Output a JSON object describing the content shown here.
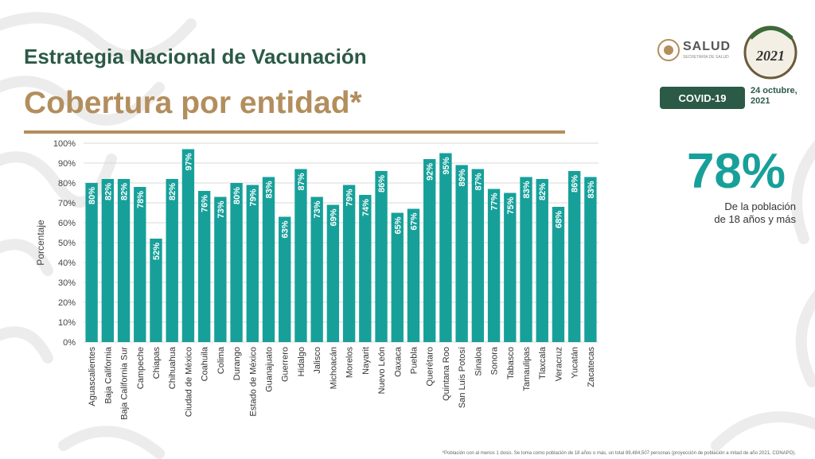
{
  "header": {
    "title": "Estrategia Nacional de Vacunación",
    "subtitle": "Cobertura por entidad*"
  },
  "logo": {
    "name": "SALUD",
    "sub": "SECRETARÍA DE SALUD",
    "emblem_year": "2021"
  },
  "badge": {
    "text": "COVID-19"
  },
  "date": {
    "line1": "24 octubre,",
    "line2": "2021"
  },
  "summary": {
    "percent": "78%",
    "line1": "De la población",
    "line2": "de 18 años y más"
  },
  "footnote": "*Población con al menos 1 dosis. Se toma como población de 18 años o más, un total 89,484,507 personas (proyección de población a mitad de año 2021, CONAPO).",
  "colors": {
    "bar": "#17a09a",
    "title": "#2b5a47",
    "subtitle": "#b38e5d"
  },
  "chart_data": {
    "type": "bar",
    "ylabel": "Porcentaje",
    "ylim": [
      0,
      100
    ],
    "yticks": [
      0,
      10,
      20,
      30,
      40,
      50,
      60,
      70,
      80,
      90,
      100
    ],
    "grid": true,
    "categories": [
      "Aguascalientes",
      "Baja California",
      "Baja California Sur",
      "Campeche",
      "Chiapas",
      "Chihuahua",
      "Ciudad de México",
      "Coahuila",
      "Colima",
      "Durango",
      "Estado de México",
      "Guanajuato",
      "Guerrero",
      "Hidalgo",
      "Jalisco",
      "Michoacán",
      "Morelos",
      "Nayarit",
      "Nuevo León",
      "Oaxaca",
      "Puebla",
      "Querétaro",
      "Quintana Roo",
      "San Luis Potosí",
      "Sinaloa",
      "Sonora",
      "Tabasco",
      "Tamaulipas",
      "Tlaxcala",
      "Veracruz",
      "Yucatán",
      "Zacatecas"
    ],
    "values": [
      80,
      82,
      82,
      78,
      52,
      82,
      97,
      76,
      73,
      80,
      79,
      83,
      63,
      87,
      73,
      69,
      79,
      74,
      86,
      65,
      67,
      92,
      95,
      89,
      87,
      77,
      75,
      83,
      82,
      68,
      86,
      83
    ]
  }
}
